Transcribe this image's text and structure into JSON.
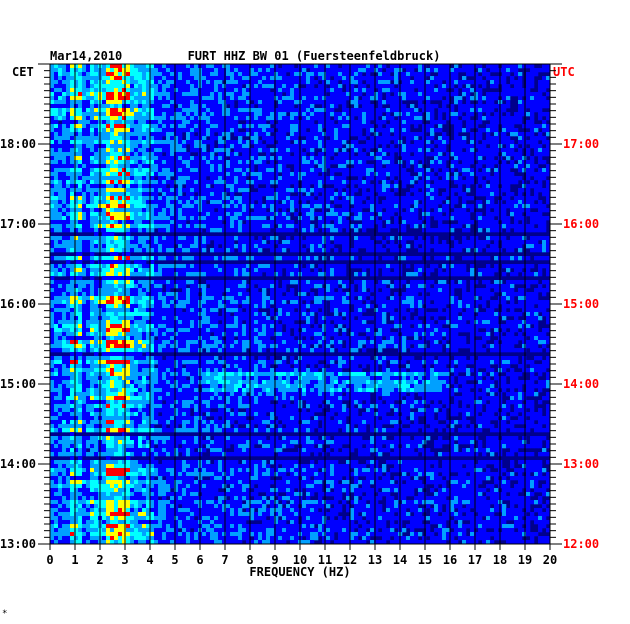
{
  "chart_data": {
    "type": "heatmap",
    "date_label": "Mar14,2010",
    "title": "FURT HHZ BW 01 (Fuersteenfeldbruck)",
    "xlabel": "FREQUENCY (HZ)",
    "left_axis_label": "CET",
    "right_axis_label": "UTC",
    "xlim": [
      0,
      20
    ],
    "x_ticks": [
      "0",
      "1",
      "2",
      "3",
      "4",
      "5",
      "6",
      "7",
      "8",
      "9",
      "10",
      "11",
      "12",
      "13",
      "14",
      "15",
      "16",
      "17",
      "18",
      "19",
      "20"
    ],
    "cet_hours": [
      "13:00",
      "14:00",
      "15:00",
      "16:00",
      "17:00",
      "18:00"
    ],
    "utc_hours": [
      "12:00",
      "13:00",
      "14:00",
      "15:00",
      "16:00",
      "17:00"
    ],
    "time_span_hours": [
      13.0,
      19.0
    ],
    "grid": true,
    "colorscale": [
      "#00008c",
      "#0000ff",
      "#00a0ff",
      "#00ffff",
      "#ffff00",
      "#ff0000"
    ],
    "features": {
      "dominant_band_hz": [
        2.2,
        3.2
      ],
      "secondary_line_hz": 1.0,
      "broadband_event_cet": "15:00",
      "broadband_event_hz": [
        6,
        16
      ]
    },
    "footer_mark": "*"
  },
  "colors": {
    "background": "#00008c",
    "right_axis": "#ff0000",
    "grid": "#000000"
  }
}
